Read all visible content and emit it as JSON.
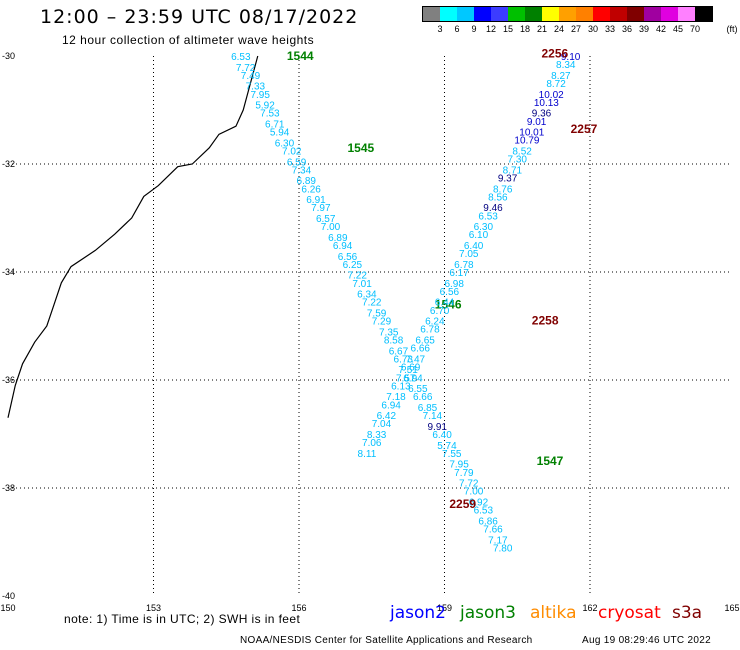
{
  "header": {
    "title": "12:00 – 23:59 UTC 08/17/2022",
    "subtitle": "12 hour collection of altimeter wave heights"
  },
  "color_scale": {
    "unit": "(ft)",
    "labels": [
      "3",
      "6",
      "9",
      "12",
      "15",
      "18",
      "21",
      "24",
      "27",
      "30",
      "33",
      "36",
      "39",
      "42",
      "45",
      "70"
    ],
    "colors": [
      "#808080",
      "#00ffff",
      "#00c8ff",
      "#0000ff",
      "#3c3cff",
      "#00c000",
      "#008000",
      "#ffff00",
      "#ffa000",
      "#ff8000",
      "#ff0000",
      "#c00000",
      "#800000",
      "#a000a0",
      "#e000e0",
      "#ff80ff",
      "#000000"
    ]
  },
  "map": {
    "lon_ticks": [
      "150",
      "153",
      "156",
      "159",
      "162",
      "165"
    ],
    "lat_ticks": [
      "-30",
      "-32",
      "-34",
      "-36",
      "-38",
      "-40"
    ],
    "coastline": [
      [
        155.15,
        -30.0
      ],
      [
        155.0,
        -30.5
      ],
      [
        154.85,
        -31.0
      ],
      [
        154.7,
        -31.3
      ],
      [
        154.35,
        -31.45
      ],
      [
        154.15,
        -31.7
      ],
      [
        153.8,
        -32.0
      ],
      [
        153.5,
        -32.05
      ],
      [
        153.1,
        -32.4
      ],
      [
        152.8,
        -32.6
      ],
      [
        152.55,
        -33.0
      ],
      [
        152.2,
        -33.3
      ],
      [
        151.8,
        -33.6
      ],
      [
        151.3,
        -33.9
      ],
      [
        151.1,
        -34.2
      ],
      [
        150.95,
        -34.6
      ],
      [
        150.8,
        -35.0
      ],
      [
        150.55,
        -35.3
      ],
      [
        150.3,
        -35.7
      ],
      [
        150.15,
        -36.1
      ],
      [
        150.05,
        -36.5
      ],
      [
        150.0,
        -36.7
      ]
    ],
    "tracks": [
      {
        "time_labels": [
          {
            "lon": 155.75,
            "lat": -30.0,
            "text": "1544"
          },
          {
            "lon": 157.0,
            "lat": -31.7,
            "text": "1545"
          },
          {
            "lon": 158.8,
            "lat": -34.6,
            "text": "1546"
          },
          {
            "lon": 160.9,
            "lat": -37.5,
            "text": "1547"
          }
        ],
        "label_color": "#008000",
        "points": [
          {
            "lon": 154.8,
            "lat": -30.0,
            "swh": 6.53,
            "color": "#00bfff"
          },
          {
            "lon": 154.9,
            "lat": -30.2,
            "swh": 7.72,
            "color": "#00bfff"
          },
          {
            "lon": 155.0,
            "lat": -30.35,
            "swh": 7.49,
            "color": "#00bfff"
          },
          {
            "lon": 155.1,
            "lat": -30.55,
            "swh": 7.33,
            "color": "#00bfff"
          },
          {
            "lon": 155.2,
            "lat": -30.7,
            "swh": 7.95,
            "color": "#00bfff"
          },
          {
            "lon": 155.3,
            "lat": -30.9,
            "swh": 5.92,
            "color": "#00bfff"
          },
          {
            "lon": 155.4,
            "lat": -31.05,
            "swh": 7.53,
            "color": "#00bfff"
          },
          {
            "lon": 155.5,
            "lat": -31.25,
            "swh": 6.71,
            "color": "#00bfff"
          },
          {
            "lon": 155.6,
            "lat": -31.4,
            "swh": 5.94,
            "color": "#00bfff"
          },
          {
            "lon": 155.7,
            "lat": -31.6,
            "swh": 6.3,
            "color": "#00bfff"
          },
          {
            "lon": 155.85,
            "lat": -31.75,
            "swh": 7.02,
            "color": "#00bfff"
          },
          {
            "lon": 155.95,
            "lat": -31.95,
            "swh": 6.59,
            "color": "#00bfff"
          },
          {
            "lon": 156.05,
            "lat": -32.1,
            "swh": 7.34,
            "color": "#00bfff"
          },
          {
            "lon": 156.15,
            "lat": -32.3,
            "swh": 6.89,
            "color": "#00bfff"
          },
          {
            "lon": 156.25,
            "lat": -32.45,
            "swh": 6.26,
            "color": "#00bfff"
          },
          {
            "lon": 156.35,
            "lat": -32.65,
            "swh": 6.91,
            "color": "#00bfff"
          },
          {
            "lon": 156.45,
            "lat": -32.8,
            "swh": 7.97,
            "color": "#00bfff"
          },
          {
            "lon": 156.55,
            "lat": -33.0,
            "swh": 6.57,
            "color": "#00bfff"
          },
          {
            "lon": 156.65,
            "lat": -33.15,
            "swh": 7.0,
            "color": "#00bfff"
          },
          {
            "lon": 156.8,
            "lat": -33.35,
            "swh": 6.89,
            "color": "#00bfff"
          },
          {
            "lon": 156.9,
            "lat": -33.5,
            "swh": 6.94,
            "color": "#00bfff"
          },
          {
            "lon": 157.0,
            "lat": -33.7,
            "swh": 6.56,
            "color": "#00bfff"
          },
          {
            "lon": 157.1,
            "lat": -33.85,
            "swh": 6.25,
            "color": "#00bfff"
          },
          {
            "lon": 157.2,
            "lat": -34.05,
            "swh": 7.22,
            "color": "#00bfff"
          },
          {
            "lon": 157.3,
            "lat": -34.2,
            "swh": 7.01,
            "color": "#00bfff"
          },
          {
            "lon": 157.4,
            "lat": -34.4,
            "swh": 6.34,
            "color": "#00bfff"
          },
          {
            "lon": 157.5,
            "lat": -34.55,
            "swh": 7.22,
            "color": "#00bfff"
          },
          {
            "lon": 157.6,
            "lat": -34.75,
            "swh": 7.59,
            "color": "#00bfff"
          },
          {
            "lon": 157.7,
            "lat": -34.9,
            "swh": 7.29,
            "color": "#00bfff"
          },
          {
            "lon": 157.85,
            "lat": -35.1,
            "swh": 7.35,
            "color": "#00bfff"
          },
          {
            "lon": 157.95,
            "lat": -35.25,
            "swh": 8.58,
            "color": "#00bfff"
          },
          {
            "lon": 158.05,
            "lat": -35.45,
            "swh": 6.67,
            "color": "#00bfff"
          },
          {
            "lon": 158.15,
            "lat": -35.6,
            "swh": 6.73,
            "color": "#00bfff"
          },
          {
            "lon": 158.25,
            "lat": -35.8,
            "swh": 7.51,
            "color": "#00bfff"
          },
          {
            "lon": 158.35,
            "lat": -35.95,
            "swh": 6.94,
            "color": "#00bfff"
          },
          {
            "lon": 158.45,
            "lat": -36.15,
            "swh": 6.55,
            "color": "#00bfff"
          },
          {
            "lon": 158.55,
            "lat": -36.3,
            "swh": 6.66,
            "color": "#00bfff"
          },
          {
            "lon": 158.65,
            "lat": -36.5,
            "swh": 6.85,
            "color": "#00bfff"
          },
          {
            "lon": 158.75,
            "lat": -36.65,
            "swh": 7.14,
            "color": "#00bfff"
          },
          {
            "lon": 158.85,
            "lat": -36.85,
            "swh": 9.91,
            "color": "#000080"
          },
          {
            "lon": 158.95,
            "lat": -37.0,
            "swh": 6.4,
            "color": "#00bfff"
          },
          {
            "lon": 159.05,
            "lat": -37.2,
            "swh": 5.74,
            "color": "#00bfff"
          },
          {
            "lon": 159.15,
            "lat": -37.35,
            "swh": 7.55,
            "color": "#00bfff"
          },
          {
            "lon": 159.3,
            "lat": -37.55,
            "swh": 7.95,
            "color": "#00bfff"
          },
          {
            "lon": 159.4,
            "lat": -37.7,
            "swh": 7.79,
            "color": "#00bfff"
          },
          {
            "lon": 159.5,
            "lat": -37.9,
            "swh": 7.72,
            "color": "#00bfff"
          },
          {
            "lon": 159.6,
            "lat": -38.05,
            "swh": 7.0,
            "color": "#00bfff"
          },
          {
            "lon": 159.7,
            "lat": -38.25,
            "swh": 6.92,
            "color": "#00bfff"
          },
          {
            "lon": 159.8,
            "lat": -38.4,
            "swh": 6.53,
            "color": "#00bfff"
          },
          {
            "lon": 159.9,
            "lat": -38.6,
            "swh": 6.86,
            "color": "#00bfff"
          },
          {
            "lon": 160.0,
            "lat": -38.75,
            "swh": 7.66,
            "color": "#00bfff"
          },
          {
            "lon": 160.1,
            "lat": -38.95,
            "swh": 7.17,
            "color": "#00bfff"
          },
          {
            "lon": 160.2,
            "lat": -39.1,
            "swh": 7.8,
            "color": "#00bfff"
          }
        ]
      },
      {
        "time_labels": [
          {
            "lon": 161.0,
            "lat": -29.95,
            "text": "2256"
          },
          {
            "lon": 161.6,
            "lat": -31.35,
            "text": "2257"
          },
          {
            "lon": 160.8,
            "lat": -34.9,
            "text": "2258"
          },
          {
            "lon": 159.1,
            "lat": -38.3,
            "text": "2259"
          }
        ],
        "label_color": "#800000",
        "points": [
          {
            "lon": 161.6,
            "lat": -30.0,
            "swh": 9.1,
            "color": "#0000cd"
          },
          {
            "lon": 161.5,
            "lat": -30.15,
            "swh": 8.34,
            "color": "#00bfff"
          },
          {
            "lon": 161.4,
            "lat": -30.35,
            "swh": 8.27,
            "color": "#00bfff"
          },
          {
            "lon": 161.3,
            "lat": -30.5,
            "swh": 8.72,
            "color": "#00bfff"
          },
          {
            "lon": 161.2,
            "lat": -30.7,
            "swh": 10.02,
            "color": "#0000cd"
          },
          {
            "lon": 161.1,
            "lat": -30.85,
            "swh": 10.13,
            "color": "#0000cd"
          },
          {
            "lon": 161.0,
            "lat": -31.05,
            "swh": 9.36,
            "color": "#000080"
          },
          {
            "lon": 160.9,
            "lat": -31.2,
            "swh": 9.01,
            "color": "#0000cd"
          },
          {
            "lon": 160.8,
            "lat": -31.4,
            "swh": 10.01,
            "color": "#0000cd"
          },
          {
            "lon": 160.7,
            "lat": -31.55,
            "swh": 10.79,
            "color": "#0000cd"
          },
          {
            "lon": 160.6,
            "lat": -31.75,
            "swh": 8.52,
            "color": "#00bfff"
          },
          {
            "lon": 160.5,
            "lat": -31.9,
            "swh": 7.3,
            "color": "#00bfff"
          },
          {
            "lon": 160.4,
            "lat": -32.1,
            "swh": 8.71,
            "color": "#00bfff"
          },
          {
            "lon": 160.3,
            "lat": -32.25,
            "swh": 9.37,
            "color": "#000080"
          },
          {
            "lon": 160.2,
            "lat": -32.45,
            "swh": 8.76,
            "color": "#00bfff"
          },
          {
            "lon": 160.1,
            "lat": -32.6,
            "swh": 8.56,
            "color": "#00bfff"
          },
          {
            "lon": 160.0,
            "lat": -32.8,
            "swh": 9.46,
            "color": "#000080"
          },
          {
            "lon": 159.9,
            "lat": -32.95,
            "swh": 6.53,
            "color": "#00bfff"
          },
          {
            "lon": 159.8,
            "lat": -33.15,
            "swh": 6.3,
            "color": "#00bfff"
          },
          {
            "lon": 159.7,
            "lat": -33.3,
            "swh": 6.1,
            "color": "#00bfff"
          },
          {
            "lon": 159.6,
            "lat": -33.5,
            "swh": 6.4,
            "color": "#00bfff"
          },
          {
            "lon": 159.5,
            "lat": -33.65,
            "swh": 7.05,
            "color": "#00bfff"
          },
          {
            "lon": 159.4,
            "lat": -33.85,
            "swh": 6.78,
            "color": "#00bfff"
          },
          {
            "lon": 159.3,
            "lat": -34.0,
            "swh": 6.17,
            "color": "#00bfff"
          },
          {
            "lon": 159.2,
            "lat": -34.2,
            "swh": 6.98,
            "color": "#00bfff"
          },
          {
            "lon": 159.1,
            "lat": -34.35,
            "swh": 6.56,
            "color": "#00bfff"
          },
          {
            "lon": 159.0,
            "lat": -34.55,
            "swh": 6.44,
            "color": "#00bfff"
          },
          {
            "lon": 158.9,
            "lat": -34.7,
            "swh": 6.7,
            "color": "#00bfff"
          },
          {
            "lon": 158.8,
            "lat": -34.9,
            "swh": 6.24,
            "color": "#00bfff"
          },
          {
            "lon": 158.7,
            "lat": -35.05,
            "swh": 6.78,
            "color": "#00bfff"
          },
          {
            "lon": 158.6,
            "lat": -35.25,
            "swh": 6.65,
            "color": "#00bfff"
          },
          {
            "lon": 158.5,
            "lat": -35.4,
            "swh": 6.66,
            "color": "#00bfff"
          },
          {
            "lon": 158.4,
            "lat": -35.6,
            "swh": 7.47,
            "color": "#00bfff"
          },
          {
            "lon": 158.3,
            "lat": -35.75,
            "swh": 6.69,
            "color": "#00bfff"
          },
          {
            "lon": 158.2,
            "lat": -35.95,
            "swh": 7.57,
            "color": "#00bfff"
          },
          {
            "lon": 158.1,
            "lat": -36.1,
            "swh": 6.13,
            "color": "#00bfff"
          },
          {
            "lon": 158.0,
            "lat": -36.3,
            "swh": 7.18,
            "color": "#00bfff"
          },
          {
            "lon": 157.9,
            "lat": -36.45,
            "swh": 6.94,
            "color": "#00bfff"
          },
          {
            "lon": 157.8,
            "lat": -36.65,
            "swh": 6.42,
            "color": "#00bfff"
          },
          {
            "lon": 157.7,
            "lat": -36.8,
            "swh": 7.04,
            "color": "#00bfff"
          },
          {
            "lon": 157.6,
            "lat": -37.0,
            "swh": 8.33,
            "color": "#00bfff"
          },
          {
            "lon": 157.5,
            "lat": -37.15,
            "swh": 7.06,
            "color": "#00bfff"
          },
          {
            "lon": 157.4,
            "lat": -37.35,
            "swh": 8.11,
            "color": "#00bfff"
          }
        ]
      }
    ]
  },
  "footer": {
    "note": "note: 1) Time is in UTC; 2) SWH is in feet",
    "legend": [
      {
        "text": "jason2",
        "color": "#0000ff"
      },
      {
        "text": "jason3",
        "color": "#008000"
      },
      {
        "text": "altika",
        "color": "#ff8c00"
      },
      {
        "text": "cryosat",
        "color": "#ff0000"
      },
      {
        "text": "s3a",
        "color": "#800000"
      }
    ],
    "credit": "NOAA/NESDIS Center for Satellite Applications and Research",
    "timestamp": "Aug 19 08:29:46 UTC 2022"
  }
}
